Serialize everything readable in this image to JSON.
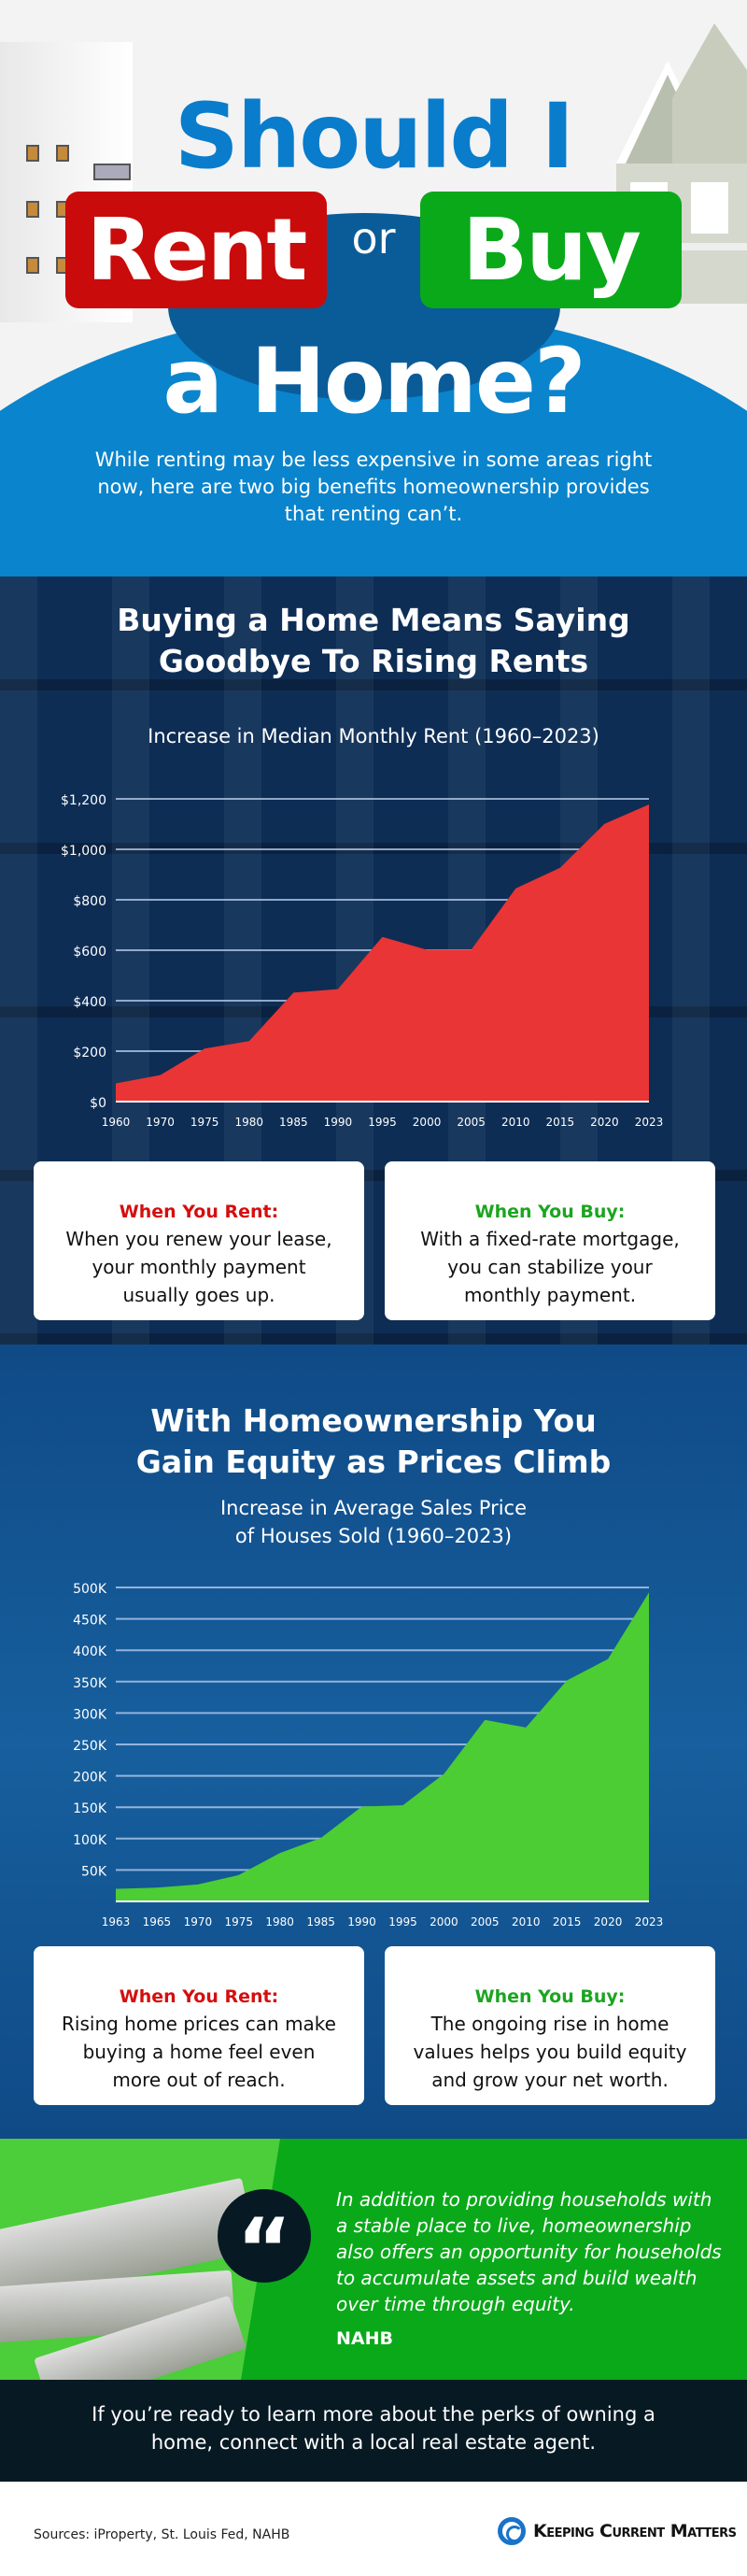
{
  "hero": {
    "line1": "Should I",
    "rent": "Rent",
    "or": "or",
    "buy": "Buy",
    "line3": "a Home?",
    "intro": "While renting may be less expensive in some areas right now, here are two big benefits homeownership provides that renting can’t."
  },
  "rent_section": {
    "title_line1": "Buying a Home Means Saying",
    "title_line2": "Goodbye To Rising Rents",
    "chart_title": "Increase in Median Monthly Rent (1960–2023)",
    "cards": [
      {
        "heading": "When You Rent:",
        "body": "When you renew your lease, your monthly payment usually goes up."
      },
      {
        "heading": "When You Buy:",
        "body": "With a fixed-rate mortgage, you can stabilize your monthly payment."
      }
    ]
  },
  "equity_section": {
    "title_line1": "With Homeownership You",
    "title_line2": "Gain Equity as Prices Climb",
    "chart_title_line1": "Increase in Average Sales Price",
    "chart_title_line2": "of Houses Sold (1960–2023)",
    "cards": [
      {
        "heading": "When You Rent:",
        "body": "Rising home prices can make buying a home feel even more out of reach."
      },
      {
        "heading": "When You Buy:",
        "body": "The ongoing rise in home values helps you build equity and grow your net worth."
      }
    ]
  },
  "quote": {
    "text": "In addition to providing households with a stable place to live, homeownership also offers an opportunity for households to accumulate assets and build wealth over time through equity.",
    "source": "NAHB",
    "icon": "quote-mark-icon"
  },
  "cta": {
    "text": "If you’re ready to learn more about the perks of owning a home, connect with a local real estate agent."
  },
  "footer": {
    "sources": "Sources: iProperty, St. Louis Fed, NAHB",
    "brand": "Keeping Current Matters"
  },
  "colors": {
    "rent_red": "#d40f0f",
    "buy_green": "#0aa91a",
    "hero_blue": "#0a84cc",
    "rent_area": "#e93535",
    "price_area": "#4ccd33"
  },
  "chart_data": [
    {
      "type": "area",
      "title": "Increase in Median Monthly Rent (1960–2023)",
      "categories": [
        "1960",
        "1970",
        "1975",
        "1980",
        "1985",
        "1990",
        "1995",
        "2000",
        "2005",
        "2010",
        "2015",
        "2020",
        "2023"
      ],
      "values": [
        72,
        105,
        210,
        240,
        432,
        446,
        653,
        602,
        602,
        845,
        927,
        1101,
        1178
      ],
      "ytick_labels": [
        "$0",
        "$200",
        "$400",
        "$600",
        "$800",
        "$1,000",
        "$1,200"
      ],
      "yticks": [
        0,
        200,
        400,
        600,
        800,
        1000,
        1200
      ],
      "ylim": [
        0,
        1200
      ],
      "grid": true,
      "color": "#e93535"
    },
    {
      "type": "area",
      "title": "Increase in Average Sales Price of Houses Sold (1960–2023)",
      "categories": [
        "1963",
        "1965",
        "1970",
        "1975",
        "1980",
        "1985",
        "1990",
        "1995",
        "2000",
        "2005",
        "2010",
        "2015",
        "2020",
        "2023"
      ],
      "values": [
        20000,
        22000,
        27000,
        42000,
        77000,
        101000,
        151000,
        153000,
        203000,
        289000,
        277000,
        352000,
        386000,
        492000
      ],
      "ytick_labels": [
        "50K",
        "100K",
        "150K",
        "200K",
        "250K",
        "300K",
        "350K",
        "400K",
        "450K",
        "500K"
      ],
      "yticks": [
        50000,
        100000,
        150000,
        200000,
        250000,
        300000,
        350000,
        400000,
        450000,
        500000
      ],
      "ylim": [
        0,
        500000
      ],
      "grid": true,
      "color": "#4ccd33"
    }
  ]
}
